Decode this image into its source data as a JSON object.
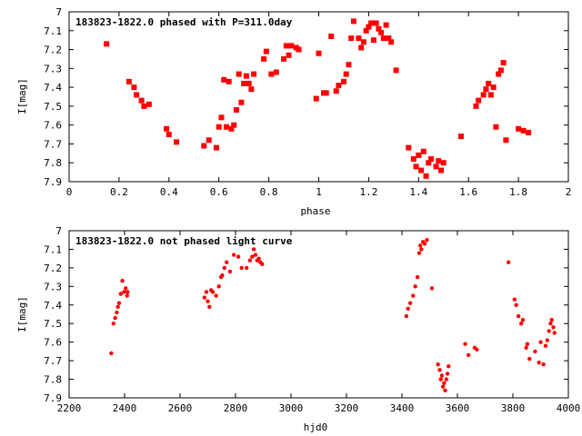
{
  "chart_data": [
    {
      "type": "scatter",
      "title": "183823-1822.0 phased with P=311.0day",
      "xlabel": "phase",
      "ylabel": "I[mag]",
      "xlim": [
        0,
        2
      ],
      "ylim": [
        7.9,
        7.0
      ],
      "y_inverted": true,
      "x_ticks": [
        "0",
        "0.2",
        "0.4",
        "0.6",
        "0.8",
        "1",
        "1.2",
        "1.4",
        "1.6",
        "1.8",
        "2"
      ],
      "y_ticks": [
        "7",
        "7.1",
        "7.2",
        "7.3",
        "7.4",
        "7.5",
        "7.6",
        "7.7",
        "7.8",
        "7.9"
      ],
      "grid": false,
      "legend": "none",
      "marker": "filled-square",
      "color": "#ff0000",
      "points": [
        [
          0.15,
          7.17
        ],
        [
          0.24,
          7.37
        ],
        [
          0.26,
          7.4
        ],
        [
          0.27,
          7.44
        ],
        [
          0.29,
          7.47
        ],
        [
          0.3,
          7.5
        ],
        [
          0.32,
          7.49
        ],
        [
          0.39,
          7.62
        ],
        [
          0.4,
          7.65
        ],
        [
          0.43,
          7.69
        ],
        [
          0.54,
          7.71
        ],
        [
          0.56,
          7.68
        ],
        [
          0.59,
          7.72
        ],
        [
          0.6,
          7.61
        ],
        [
          0.61,
          7.56
        ],
        [
          0.62,
          7.36
        ],
        [
          0.63,
          7.61
        ],
        [
          0.64,
          7.37
        ],
        [
          0.65,
          7.62
        ],
        [
          0.66,
          7.6
        ],
        [
          0.67,
          7.52
        ],
        [
          0.68,
          7.33
        ],
        [
          0.69,
          7.48
        ],
        [
          0.7,
          7.38
        ],
        [
          0.71,
          7.34
        ],
        [
          0.72,
          7.38
        ],
        [
          0.73,
          7.41
        ],
        [
          0.74,
          7.33
        ],
        [
          0.78,
          7.25
        ],
        [
          0.79,
          7.21
        ],
        [
          0.81,
          7.33
        ],
        [
          0.83,
          7.32
        ],
        [
          0.86,
          7.25
        ],
        [
          0.87,
          7.18
        ],
        [
          0.88,
          7.23
        ],
        [
          0.89,
          7.18
        ],
        [
          0.91,
          7.19
        ],
        [
          0.92,
          7.2
        ],
        [
          0.99,
          7.46
        ],
        [
          1.0,
          7.22
        ],
        [
          1.02,
          7.43
        ],
        [
          1.03,
          7.43
        ],
        [
          1.05,
          7.13
        ],
        [
          1.07,
          7.42
        ],
        [
          1.08,
          7.39
        ],
        [
          1.1,
          7.37
        ],
        [
          1.11,
          7.33
        ],
        [
          1.12,
          7.28
        ],
        [
          1.13,
          7.14
        ],
        [
          1.14,
          7.05
        ],
        [
          1.16,
          7.14
        ],
        [
          1.17,
          7.19
        ],
        [
          1.18,
          7.16
        ],
        [
          1.19,
          7.1
        ],
        [
          1.2,
          7.08
        ],
        [
          1.21,
          7.06
        ],
        [
          1.22,
          7.15
        ],
        [
          1.23,
          7.06
        ],
        [
          1.24,
          7.09
        ],
        [
          1.25,
          7.11
        ],
        [
          1.26,
          7.14
        ],
        [
          1.27,
          7.07
        ],
        [
          1.28,
          7.14
        ],
        [
          1.29,
          7.16
        ],
        [
          1.31,
          7.31
        ],
        [
          1.36,
          7.72
        ],
        [
          1.38,
          7.78
        ],
        [
          1.39,
          7.82
        ],
        [
          1.4,
          7.76
        ],
        [
          1.41,
          7.84
        ],
        [
          1.42,
          7.74
        ],
        [
          1.43,
          7.87
        ],
        [
          1.44,
          7.8
        ],
        [
          1.45,
          7.78
        ],
        [
          1.47,
          7.82
        ],
        [
          1.48,
          7.79
        ],
        [
          1.49,
          7.84
        ],
        [
          1.5,
          7.8
        ],
        [
          1.57,
          7.66
        ],
        [
          1.63,
          7.5
        ],
        [
          1.64,
          7.47
        ],
        [
          1.66,
          7.44
        ],
        [
          1.67,
          7.41
        ],
        [
          1.68,
          7.38
        ],
        [
          1.69,
          7.44
        ],
        [
          1.7,
          7.4
        ],
        [
          1.71,
          7.61
        ],
        [
          1.72,
          7.33
        ],
        [
          1.73,
          7.31
        ],
        [
          1.74,
          7.27
        ],
        [
          1.75,
          7.68
        ],
        [
          1.8,
          7.62
        ],
        [
          1.82,
          7.63
        ],
        [
          1.84,
          7.64
        ]
      ]
    },
    {
      "type": "scatter",
      "title": "183823-1822.0 not phased light curve",
      "xlabel": "hjd0",
      "ylabel": "I[mag]",
      "xlim": [
        2200,
        4000
      ],
      "ylim": [
        7.9,
        7.0
      ],
      "y_inverted": true,
      "x_ticks": [
        "2200",
        "2400",
        "2600",
        "2800",
        "3000",
        "3200",
        "3400",
        "3600",
        "3800",
        "4000"
      ],
      "y_ticks": [
        "7",
        "7.1",
        "7.2",
        "7.3",
        "7.4",
        "7.5",
        "7.6",
        "7.7",
        "7.8",
        "7.9"
      ],
      "grid": false,
      "legend": "none",
      "marker": "filled-circle",
      "color": "#ff0000",
      "points": [
        [
          2352,
          7.66
        ],
        [
          2360,
          7.5
        ],
        [
          2366,
          7.47
        ],
        [
          2372,
          7.44
        ],
        [
          2376,
          7.41
        ],
        [
          2380,
          7.39
        ],
        [
          2386,
          7.34
        ],
        [
          2392,
          7.27
        ],
        [
          2398,
          7.33
        ],
        [
          2404,
          7.31
        ],
        [
          2409,
          7.35
        ],
        [
          2411,
          7.33
        ],
        [
          2688,
          7.36
        ],
        [
          2695,
          7.33
        ],
        [
          2700,
          7.38
        ],
        [
          2706,
          7.41
        ],
        [
          2712,
          7.32
        ],
        [
          2718,
          7.33
        ],
        [
          2730,
          7.35
        ],
        [
          2740,
          7.3
        ],
        [
          2748,
          7.25
        ],
        [
          2752,
          7.24
        ],
        [
          2760,
          7.2
        ],
        [
          2768,
          7.17
        ],
        [
          2780,
          7.22
        ],
        [
          2794,
          7.13
        ],
        [
          2810,
          7.14
        ],
        [
          2822,
          7.2
        ],
        [
          2840,
          7.2
        ],
        [
          2852,
          7.16
        ],
        [
          2860,
          7.14
        ],
        [
          2866,
          7.1
        ],
        [
          2872,
          7.13
        ],
        [
          2878,
          7.16
        ],
        [
          2884,
          7.15
        ],
        [
          2890,
          7.17
        ],
        [
          2896,
          7.18
        ],
        [
          3416,
          7.46
        ],
        [
          3422,
          7.42
        ],
        [
          3430,
          7.39
        ],
        [
          3440,
          7.35
        ],
        [
          3448,
          7.3
        ],
        [
          3456,
          7.25
        ],
        [
          3462,
          7.12
        ],
        [
          3466,
          7.08
        ],
        [
          3470,
          7.1
        ],
        [
          3476,
          7.06
        ],
        [
          3482,
          7.07
        ],
        [
          3490,
          7.05
        ],
        [
          3508,
          7.31
        ],
        [
          3530,
          7.72
        ],
        [
          3536,
          7.75
        ],
        [
          3540,
          7.8
        ],
        [
          3544,
          7.78
        ],
        [
          3548,
          7.84
        ],
        [
          3552,
          7.82
        ],
        [
          3556,
          7.86
        ],
        [
          3560,
          7.8
        ],
        [
          3564,
          7.77
        ],
        [
          3568,
          7.73
        ],
        [
          3628,
          7.61
        ],
        [
          3640,
          7.67
        ],
        [
          3662,
          7.63
        ],
        [
          3670,
          7.64
        ],
        [
          3784,
          7.17
        ],
        [
          3806,
          7.37
        ],
        [
          3812,
          7.4
        ],
        [
          3820,
          7.46
        ],
        [
          3830,
          7.5
        ],
        [
          3836,
          7.48
        ],
        [
          3848,
          7.63
        ],
        [
          3852,
          7.61
        ],
        [
          3860,
          7.69
        ],
        [
          3880,
          7.65
        ],
        [
          3894,
          7.71
        ],
        [
          3900,
          7.6
        ],
        [
          3910,
          7.72
        ],
        [
          3918,
          7.62
        ],
        [
          3924,
          7.59
        ],
        [
          3930,
          7.54
        ],
        [
          3936,
          7.5
        ],
        [
          3940,
          7.48
        ],
        [
          3946,
          7.52
        ],
        [
          3950,
          7.55
        ]
      ]
    }
  ]
}
